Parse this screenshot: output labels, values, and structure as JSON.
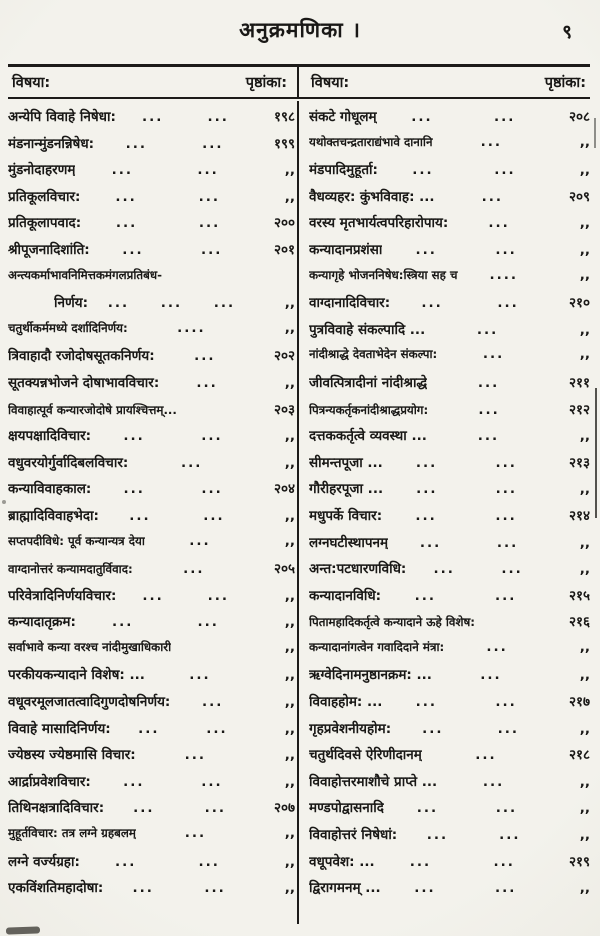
{
  "page": {
    "title": "अनुक्रमणिका ।",
    "page_number": "९"
  },
  "table": {
    "left_header": {
      "subject": "विषया:",
      "page": "पृष्ठांका:"
    },
    "right_header": {
      "subject": "विषया:",
      "page": "पृष्ठांका:"
    },
    "left_rows": [
      {
        "label": "अन्येपि विवाहे निषेधा:",
        "dots": "... ...",
        "page": "१९८"
      },
      {
        "label": "मंडनान्मुंडनन्निषेध:",
        "dots": "... ...",
        "page": "१९९"
      },
      {
        "label": "मुंडनोदाहरणम्",
        "dots": "... ...",
        "page": ",,"
      },
      {
        "label": "प्रतिकूलविचार:",
        "dots": "... ...",
        "page": ",,"
      },
      {
        "label": "प्रतिकूलापवाद:",
        "dots": "... ...",
        "page": "२००"
      },
      {
        "label": "श्रीपूजनादिशांति:",
        "dots": "... ...",
        "page": "२०१"
      },
      {
        "label": "अन्त्यकर्माभावनिमित्तकमंगलप्रतिबंध-",
        "dots": "",
        "page": ""
      },
      {
        "label": "निर्णय:",
        "indent": true,
        "dots": "... ... ...",
        "page": ",,"
      },
      {
        "label": "चतुर्थीकर्ममध्ये दर्शादिनिर्णय:",
        "dots": "....",
        "page": ",,"
      },
      {
        "label": "त्रिवाहादौ रजोदोषसूतकनिर्णय:",
        "dots": "...",
        "page": "२०२"
      },
      {
        "label": "सूतक्यन्नभोजने दोषाभावविचार:",
        "dots": "...",
        "page": ",,"
      },
      {
        "label": "विवाहात्पूर्व कन्यारजोदोषे प्रायश्चित्तम्...",
        "dots": "",
        "page": "२०३"
      },
      {
        "label": "क्षयपक्षादिविचार:",
        "dots": "... ...",
        "page": ",,"
      },
      {
        "label": "वधुवरयोर्गुर्वादिबलविचार:",
        "dots": "...",
        "page": ",,"
      },
      {
        "label": "कन्याविवाहकाल:",
        "dots": "... ...",
        "page": "२०४"
      },
      {
        "label": "ब्राह्मादिविवाहभेदा:",
        "dots": "... ...",
        "page": ",,"
      },
      {
        "label": "सप्तपदीविधे: पूर्व कन्यान्यत्र देया",
        "dots": "...",
        "page": ",,"
      },
      {
        "label": "वाग्दानोत्तरं कन्यामदातुर्विवाद:",
        "dots": "...",
        "page": "२०५"
      },
      {
        "label": "परिवेत्रादिनिर्णयविचार:",
        "dots": "... ...",
        "page": ",,"
      },
      {
        "label": "कन्यादातृक्रम:",
        "dots": "... ...",
        "page": ",,"
      },
      {
        "label": "सर्वाभावे कन्या वरश्च नांदीमुखाधिकारी",
        "dots": "",
        "page": ",,"
      },
      {
        "label": "परकीयकन्यादाने विशेष: ...",
        "dots": "...",
        "page": ",,"
      },
      {
        "label": "वधूवरमूलजातत्वादिगुणदोषनिर्णय:",
        "dots": "...",
        "page": ",,"
      },
      {
        "label": "विवाहे मासादिनिर्णय:",
        "dots": "... ...",
        "page": ",,"
      },
      {
        "label": "ज्येष्ठस्य ज्येष्ठमासि विचार:",
        "dots": "...",
        "page": ",,"
      },
      {
        "label": "आर्द्राप्रवेशविचार:",
        "dots": "... ...",
        "page": ",,"
      },
      {
        "label": "तिथिनक्षत्रादिविचार:",
        "dots": "... ...",
        "page": "२०७"
      },
      {
        "label": "मुहूर्तविचार: तत्र लग्ने ग्रहबलम्",
        "dots": "...",
        "page": ",,"
      },
      {
        "label": "लग्ने वर्ज्यग्रहा:",
        "dots": "... ...",
        "page": ",,"
      },
      {
        "label": "एकविंशतिमहादोषा:",
        "dots": "... ...",
        "page": ",,"
      }
    ],
    "right_rows": [
      {
        "label": "संकटे गोधूलम्",
        "dots": "... ...",
        "page": "२०८"
      },
      {
        "label": "यथोक्तचन्द्रताराद्यंभावे दानानि",
        "dots": "...",
        "page": ",,"
      },
      {
        "label": "मंडपादिमुहूर्ता:",
        "dots": "... ...",
        "page": ",,"
      },
      {
        "label": "वैधव्यहर: कुंभविवाह: ...",
        "dots": "...",
        "page": "२०९"
      },
      {
        "label": "वरस्य मृतभार्यत्वपरिहारोपाय:",
        "dots": "...",
        "page": ",,"
      },
      {
        "label": "कन्यादानप्रशंसा",
        "dots": "... ...",
        "page": ",,"
      },
      {
        "label": "कन्यागृहे भोजननिषेध:स्त्रिया सह च",
        "dots": "....",
        "page": ",,"
      },
      {
        "label": "वाग्दानादिविचार:",
        "dots": "... ...",
        "page": "२१०"
      },
      {
        "label": "पुत्रविवाहे संकल्पादि ...",
        "dots": "...",
        "page": ",,"
      },
      {
        "label": "नांदीश्राद्धे देवताभेदेन संकल्पा:",
        "dots": "...",
        "page": ",,"
      },
      {
        "label": "जीवत्पित्रादीनां नांदीश्राद्धे",
        "dots": "...",
        "page": "२११"
      },
      {
        "label": "पित्रन्यकर्तृकनांदीश्राद्धप्रयोग:",
        "dots": "...",
        "page": "२१२"
      },
      {
        "label": "दत्तककर्तृत्वे व्यवस्था ...",
        "dots": "...",
        "page": ",,"
      },
      {
        "label": "सीमन्तपूजा ...",
        "dots": "... ...",
        "page": "२१३"
      },
      {
        "label": "गौरीहरपूजा ...",
        "dots": "... ...",
        "page": ",,"
      },
      {
        "label": "मधुपर्के विचार:",
        "dots": "... ...",
        "page": "२१४"
      },
      {
        "label": "लग्नघटीस्थापनम्",
        "dots": "... ...",
        "page": ",,"
      },
      {
        "label": "अन्त:पटधारणविधि:",
        "dots": "... ...",
        "page": ",,"
      },
      {
        "label": "कन्यादानविधि:",
        "dots": "... ...",
        "page": "२१५"
      },
      {
        "label": "पितामहादिकर्तृत्वे कन्यादाने ऊहे विशेष:",
        "dots": "",
        "page": "२१६"
      },
      {
        "label": "कन्यादानांगत्वेन गवादिदाने मंत्रा:",
        "dots": "...",
        "page": ",,"
      },
      {
        "label": "ऋग्वेदिनामनुष्ठानक्रम: ...",
        "dots": "...",
        "page": ",,"
      },
      {
        "label": "विवाहहोम: ...",
        "dots": "... ...",
        "page": "२१७"
      },
      {
        "label": "गृहप्रवेशनीयहोम:",
        "dots": "... ...",
        "page": ",,"
      },
      {
        "label": "चतुर्थदिवसे ऐरिणीदानम्",
        "dots": "...",
        "page": "२१८"
      },
      {
        "label": "विवाहोत्तरमाशौचे प्राप्ते ...",
        "dots": "...",
        "page": ",,"
      },
      {
        "label": "मण्डपोद्वासनादि",
        "dots": "... ...",
        "page": ",,"
      },
      {
        "label": "विवाहोत्तरं निषेधां:",
        "dots": "... ...",
        "page": ",,"
      },
      {
        "label": "वधूपवेश: ...",
        "dots": "... ...",
        "page": "२१९"
      },
      {
        "label": "द्विरागमनम् ...",
        "dots": "... ...",
        "page": ",,"
      }
    ]
  },
  "colors": {
    "paper": "#f3f2ec",
    "ink": "#191816"
  }
}
